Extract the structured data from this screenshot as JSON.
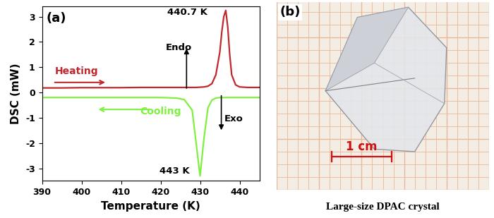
{
  "chart_data": {
    "type": "line",
    "panel_label": "(a)",
    "x_label": "Temperature (K)",
    "y_label": "DSC (mW)",
    "xlim": [
      390,
      445
    ],
    "xticks": [
      390,
      400,
      410,
      420,
      430,
      440
    ],
    "ylim": [
      -3.5,
      3.4
    ],
    "yticks": [
      -3,
      -2,
      -1,
      0,
      1,
      2,
      3
    ],
    "x": [
      390,
      395,
      400,
      405,
      410,
      415,
      420,
      422,
      424,
      426,
      428,
      429,
      430,
      431,
      432,
      433,
      434,
      435,
      435.5,
      436,
      436.5,
      437,
      437.5,
      438,
      439,
      440,
      442,
      445
    ],
    "series": [
      {
        "name": "Heating",
        "color": "#c0282d",
        "values": [
          0.18,
          0.18,
          0.19,
          0.19,
          0.19,
          0.2,
          0.2,
          0.2,
          0.2,
          0.2,
          0.2,
          0.2,
          0.21,
          0.22,
          0.25,
          0.35,
          0.7,
          1.6,
          2.4,
          3.0,
          3.25,
          2.6,
          1.5,
          0.7,
          0.3,
          0.22,
          0.2,
          0.2
        ]
      },
      {
        "name": "Cooling",
        "color": "#80f040",
        "values": [
          -0.2,
          -0.2,
          -0.2,
          -0.2,
          -0.2,
          -0.2,
          -0.2,
          -0.21,
          -0.22,
          -0.28,
          -0.7,
          -2.0,
          -3.3,
          -1.8,
          -0.6,
          -0.3,
          -0.22,
          -0.2,
          -0.2,
          -0.2,
          -0.2,
          -0.2,
          -0.2,
          -0.2,
          -0.2,
          -0.2,
          -0.2,
          -0.2
        ]
      }
    ],
    "annotations": [
      "440.7 K",
      "443 K",
      "Endo",
      "Exo"
    ]
  },
  "photo": {
    "panel_label": "(b)",
    "scale_label": "1 cm",
    "caption": "Large-size DPAC crystal"
  }
}
